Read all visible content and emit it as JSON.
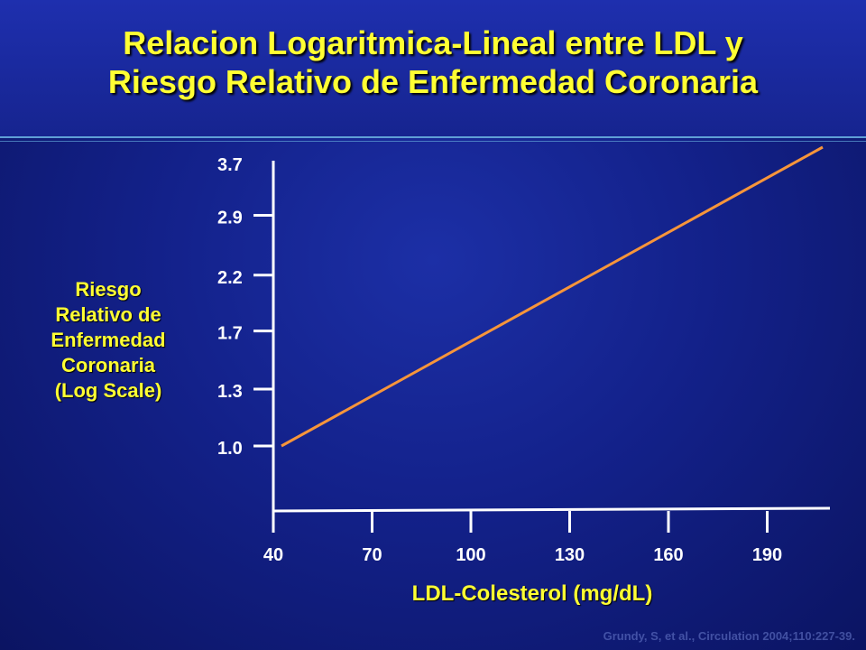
{
  "slide": {
    "title_line1": "Relacion Logaritmica-Lineal entre LDL y",
    "title_line2": "Riesgo Relativo de Enfermedad Coronaria",
    "footnote": "Grundy, S, et al., Circulation 2004;110:227-39."
  },
  "colors": {
    "title": "#ffff33",
    "axis": "#ffffff",
    "line": "#f7953a"
  },
  "chart_data": {
    "type": "line",
    "title": "Relacion Logaritmica-Lineal entre LDL y Riesgo Relativo de Enfermedad Coronaria",
    "xlabel": "LDL-Colesterol (mg/dL)",
    "ylabel_lines": [
      "Riesgo",
      "Relativo de",
      "Enfermedad",
      "Coronaria",
      "(Log Scale)"
    ],
    "x_ticks": [
      40,
      70,
      100,
      130,
      160,
      190
    ],
    "y_ticks": [
      "1.0",
      "1.3",
      "1.7",
      "2.2",
      "2.9",
      "3.7"
    ],
    "y_scale": "log",
    "xlim": [
      40,
      210
    ],
    "series": [
      {
        "x": [
          42,
          210
        ],
        "y": [
          1.0,
          4.0
        ]
      }
    ],
    "grid": false,
    "legend": "none"
  }
}
